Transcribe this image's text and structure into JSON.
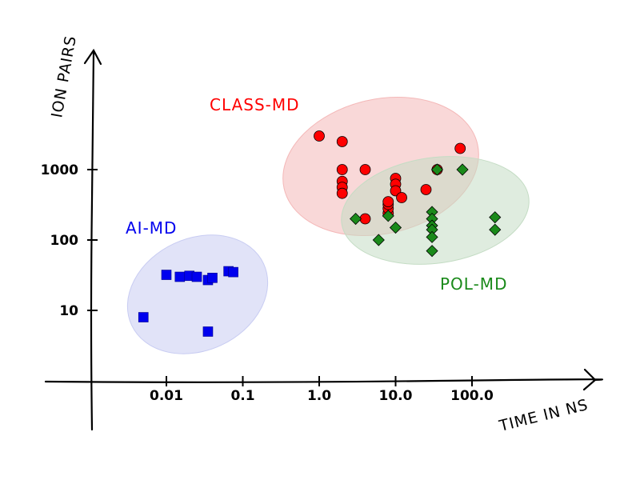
{
  "chart_data": {
    "type": "scatter",
    "title": "",
    "xlabel": "TIME IN NS",
    "ylabel": "ION PAIRS",
    "xscale": "log",
    "yscale": "log",
    "xlim": [
      0.001,
      2000
    ],
    "ylim": [
      1,
      20000
    ],
    "x_ticks": [
      {
        "value": 0.01,
        "label": "0.01"
      },
      {
        "value": 0.1,
        "label": "0.1"
      },
      {
        "value": 1,
        "label": "1.0"
      },
      {
        "value": 10,
        "label": "10.0"
      },
      {
        "value": 100,
        "label": "100.0"
      }
    ],
    "y_ticks": [
      {
        "value": 10,
        "label": "10"
      },
      {
        "value": 100,
        "label": "100"
      },
      {
        "value": 1000,
        "label": "1000"
      }
    ],
    "series": [
      {
        "name": "CLASS-MD",
        "marker": "circle",
        "color": "#ff0000",
        "ellipse_color": "#f4b8b8",
        "ellipse": {
          "x_range": [
            0.3,
            120
          ],
          "y_range": [
            180,
            6000
          ],
          "angle_deg": -13
        },
        "points": [
          [
            1,
            3000
          ],
          [
            2,
            2500
          ],
          [
            2,
            1000
          ],
          [
            2,
            680
          ],
          [
            2,
            560
          ],
          [
            2,
            460
          ],
          [
            4,
            1000
          ],
          [
            4,
            200
          ],
          [
            8,
            240
          ],
          [
            8,
            280
          ],
          [
            8,
            320
          ],
          [
            8,
            350
          ],
          [
            10,
            750
          ],
          [
            10,
            620
          ],
          [
            10,
            500
          ],
          [
            12,
            400
          ],
          [
            25,
            520
          ],
          [
            35,
            1000
          ],
          [
            70,
            2000
          ]
        ]
      },
      {
        "name": "POL-MD",
        "marker": "diamond",
        "color": "#1a8a1a",
        "ellipse_color": "#c4dcc4",
        "ellipse": {
          "x_range": [
            3,
            300
          ],
          "y_range": [
            50,
            1300
          ],
          "angle_deg": -8
        },
        "points": [
          [
            3,
            200
          ],
          [
            6,
            100
          ],
          [
            8,
            220
          ],
          [
            10,
            150
          ],
          [
            30,
            250
          ],
          [
            30,
            200
          ],
          [
            30,
            160
          ],
          [
            30,
            140
          ],
          [
            30,
            110
          ],
          [
            30,
            70
          ],
          [
            35,
            1000
          ],
          [
            75,
            1000
          ],
          [
            200,
            210
          ],
          [
            200,
            140
          ]
        ]
      },
      {
        "name": "AI-MD",
        "marker": "square",
        "color": "#0000ee",
        "ellipse_color": "#c8ccf2",
        "ellipse": {
          "x_range": [
            0.0033,
            0.25
          ],
          "y_range": [
            3,
            150
          ],
          "angle_deg": -25
        },
        "points": [
          [
            0.005,
            8
          ],
          [
            0.01,
            32
          ],
          [
            0.015,
            30
          ],
          [
            0.02,
            31
          ],
          [
            0.025,
            30
          ],
          [
            0.035,
            27
          ],
          [
            0.04,
            29
          ],
          [
            0.035,
            5
          ],
          [
            0.065,
            36
          ],
          [
            0.075,
            35
          ]
        ]
      }
    ],
    "annotations": [
      {
        "text": "CLASS-MD",
        "series": "CLASS-MD"
      },
      {
        "text": "AI-MD",
        "series": "AI-MD"
      },
      {
        "text": "POL-MD",
        "series": "POL-MD"
      }
    ]
  }
}
